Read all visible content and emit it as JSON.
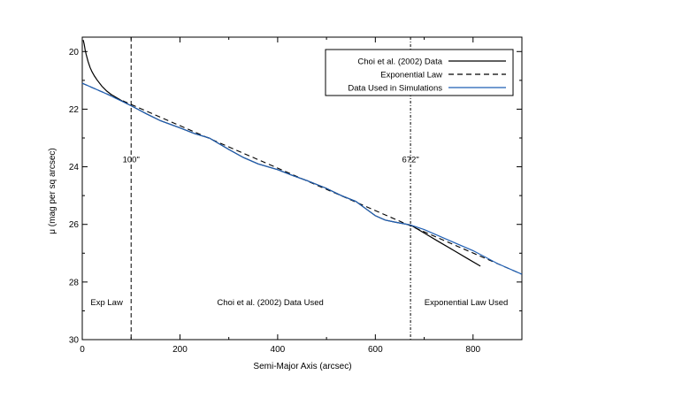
{
  "chart_data": {
    "type": "line",
    "title": "",
    "xlabel": "Semi-Major Axis (arcsec)",
    "ylabel": "μ (mag per sq arcsec)",
    "xlim": [
      0,
      900
    ],
    "ylim": [
      30,
      19.5
    ],
    "y_inverted": true,
    "xticks": [
      0,
      200,
      400,
      600,
      800
    ],
    "yticks": [
      20,
      22,
      24,
      26,
      28,
      30
    ],
    "legend_position": "top-right",
    "series": [
      {
        "name": "Choi et al. (2002) Data",
        "style": "solid",
        "color": "#000000",
        "x": [
          2,
          4,
          6,
          8,
          12,
          16,
          20,
          25,
          30,
          40,
          50,
          60,
          70,
          80,
          90,
          100,
          130,
          160,
          200,
          230,
          260,
          300,
          330,
          360,
          400,
          430,
          460,
          500,
          530,
          560,
          580,
          600,
          620,
          640,
          660,
          672,
          700,
          730,
          760,
          790,
          815
        ],
        "y": [
          19.6,
          19.75,
          19.95,
          20.1,
          20.35,
          20.55,
          20.7,
          20.85,
          20.98,
          21.2,
          21.37,
          21.5,
          21.6,
          21.7,
          21.8,
          21.88,
          22.15,
          22.4,
          22.65,
          22.85,
          23.0,
          23.4,
          23.68,
          23.9,
          24.1,
          24.3,
          24.48,
          24.75,
          25.0,
          25.2,
          25.45,
          25.7,
          25.85,
          25.92,
          25.98,
          26.02,
          26.3,
          26.6,
          26.9,
          27.2,
          27.45
        ]
      },
      {
        "name": "Exponential Law",
        "style": "dashed",
        "color": "#000000",
        "x": [
          0,
          900
        ],
        "y": [
          21.1,
          27.73
        ]
      },
      {
        "name": "Data Used in Simulations",
        "style": "solid",
        "color": "#1f5fb4",
        "x": [
          0,
          50,
          100,
          130,
          160,
          200,
          230,
          260,
          300,
          330,
          360,
          400,
          430,
          460,
          500,
          530,
          560,
          580,
          600,
          620,
          640,
          660,
          672,
          700,
          750,
          800,
          850,
          900
        ],
        "y": [
          21.1,
          21.47,
          21.88,
          22.15,
          22.4,
          22.65,
          22.85,
          23.0,
          23.4,
          23.68,
          23.9,
          24.1,
          24.3,
          24.48,
          24.75,
          25.0,
          25.2,
          25.45,
          25.7,
          25.85,
          25.92,
          25.98,
          26.02,
          26.18,
          26.55,
          26.91,
          27.36,
          27.73
        ]
      }
    ],
    "vlines": [
      100,
      672
    ],
    "annotations": [
      {
        "text": "100\"",
        "x": 100,
        "y": 23.85
      },
      {
        "text": "672\"",
        "x": 672,
        "y": 23.85
      },
      {
        "text": "Exp Law",
        "x": 50,
        "y": 28.8
      },
      {
        "text": "Choi et al. (2002) Data Used",
        "x": 385,
        "y": 28.8
      },
      {
        "text": "Exponential Law Used",
        "x": 786,
        "y": 28.8
      }
    ]
  }
}
